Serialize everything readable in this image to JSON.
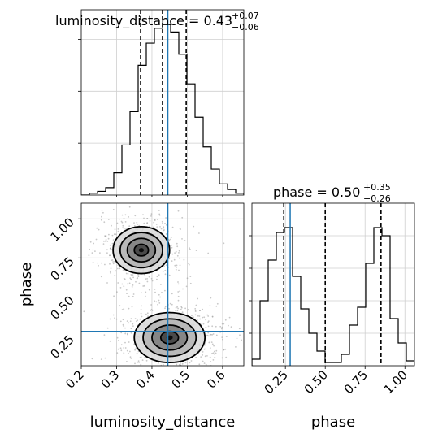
{
  "chart_data": {
    "type": "corner",
    "parameters": [
      "luminosity_distance",
      "phase"
    ],
    "truth": {
      "luminosity_distance": 0.445,
      "phase": 0.28
    },
    "xlabel": "luminosity_distance",
    "ylabel": "phase",
    "ylabel_right": "phase",
    "panels": [
      {
        "id": "luminosity_distance_marginal",
        "type": "step-histogram",
        "parameter": "luminosity_distance",
        "title_main": "luminosity_distance = 0.43",
        "title_sup": "+0.07",
        "title_sub": "−0.06",
        "xlim": [
          0.2,
          0.66
        ],
        "ylim": [
          0,
          1.0
        ],
        "bin_edges": [
          0.2,
          0.223,
          0.246,
          0.269,
          0.292,
          0.315,
          0.338,
          0.361,
          0.384,
          0.407,
          0.43,
          0.453,
          0.476,
          0.499,
          0.522,
          0.545,
          0.568,
          0.591,
          0.614,
          0.637,
          0.66
        ],
        "counts": [
          0,
          0.01,
          0.02,
          0.04,
          0.12,
          0.27,
          0.45,
          0.7,
          0.82,
          0.9,
          0.92,
          0.88,
          0.76,
          0.6,
          0.42,
          0.26,
          0.14,
          0.06,
          0.03,
          0.01
        ],
        "quantiles": [
          0.368,
          0.43,
          0.497
        ],
        "truth": 0.445,
        "grid": true
      },
      {
        "id": "phase_marginal",
        "type": "step-histogram",
        "parameter": "phase",
        "title_main": "phase = 0.50",
        "title_sup": "+0.35",
        "title_sub": "−0.26",
        "xlim": [
          0.04,
          1.06
        ],
        "ylim": [
          0,
          1.0
        ],
        "bin_edges": [
          0.04,
          0.091,
          0.142,
          0.193,
          0.244,
          0.295,
          0.346,
          0.397,
          0.448,
          0.499,
          0.55,
          0.601,
          0.652,
          0.703,
          0.754,
          0.805,
          0.856,
          0.907,
          0.958,
          1.009,
          1.06
        ],
        "counts": [
          0.04,
          0.4,
          0.65,
          0.82,
          0.85,
          0.55,
          0.35,
          0.2,
          0.09,
          0.02,
          0.02,
          0.07,
          0.25,
          0.36,
          0.63,
          0.85,
          0.8,
          0.29,
          0.14,
          0.03
        ],
        "quantiles": [
          0.24,
          0.5,
          0.85
        ],
        "truth": 0.28,
        "xticks": [
          "0.25",
          "0.50",
          "0.75",
          "1.00"
        ],
        "xtick_values": [
          0.25,
          0.5,
          0.75,
          1.0
        ],
        "grid": true
      },
      {
        "id": "joint_density",
        "type": "2d-density",
        "x": "luminosity_distance",
        "y": "phase",
        "xlim": [
          0.2,
          0.66
        ],
        "ylim": [
          0.06,
          1.1
        ],
        "xticks": [
          "0.2",
          "0.3",
          "0.4",
          "0.5",
          "0.6"
        ],
        "xtick_values": [
          0.2,
          0.3,
          0.4,
          0.5,
          0.6
        ],
        "yticks": [
          "0.25",
          "0.50",
          "0.75",
          "1.00"
        ],
        "ytick_values": [
          0.25,
          0.5,
          0.75,
          1.0
        ],
        "modes": [
          {
            "x": 0.37,
            "y": 0.8,
            "sx": 0.04,
            "sy": 0.075
          },
          {
            "x": 0.45,
            "y": 0.24,
            "sx": 0.05,
            "sy": 0.08
          }
        ],
        "truth": {
          "x": 0.445,
          "y": 0.28
        },
        "grid": true
      }
    ]
  }
}
